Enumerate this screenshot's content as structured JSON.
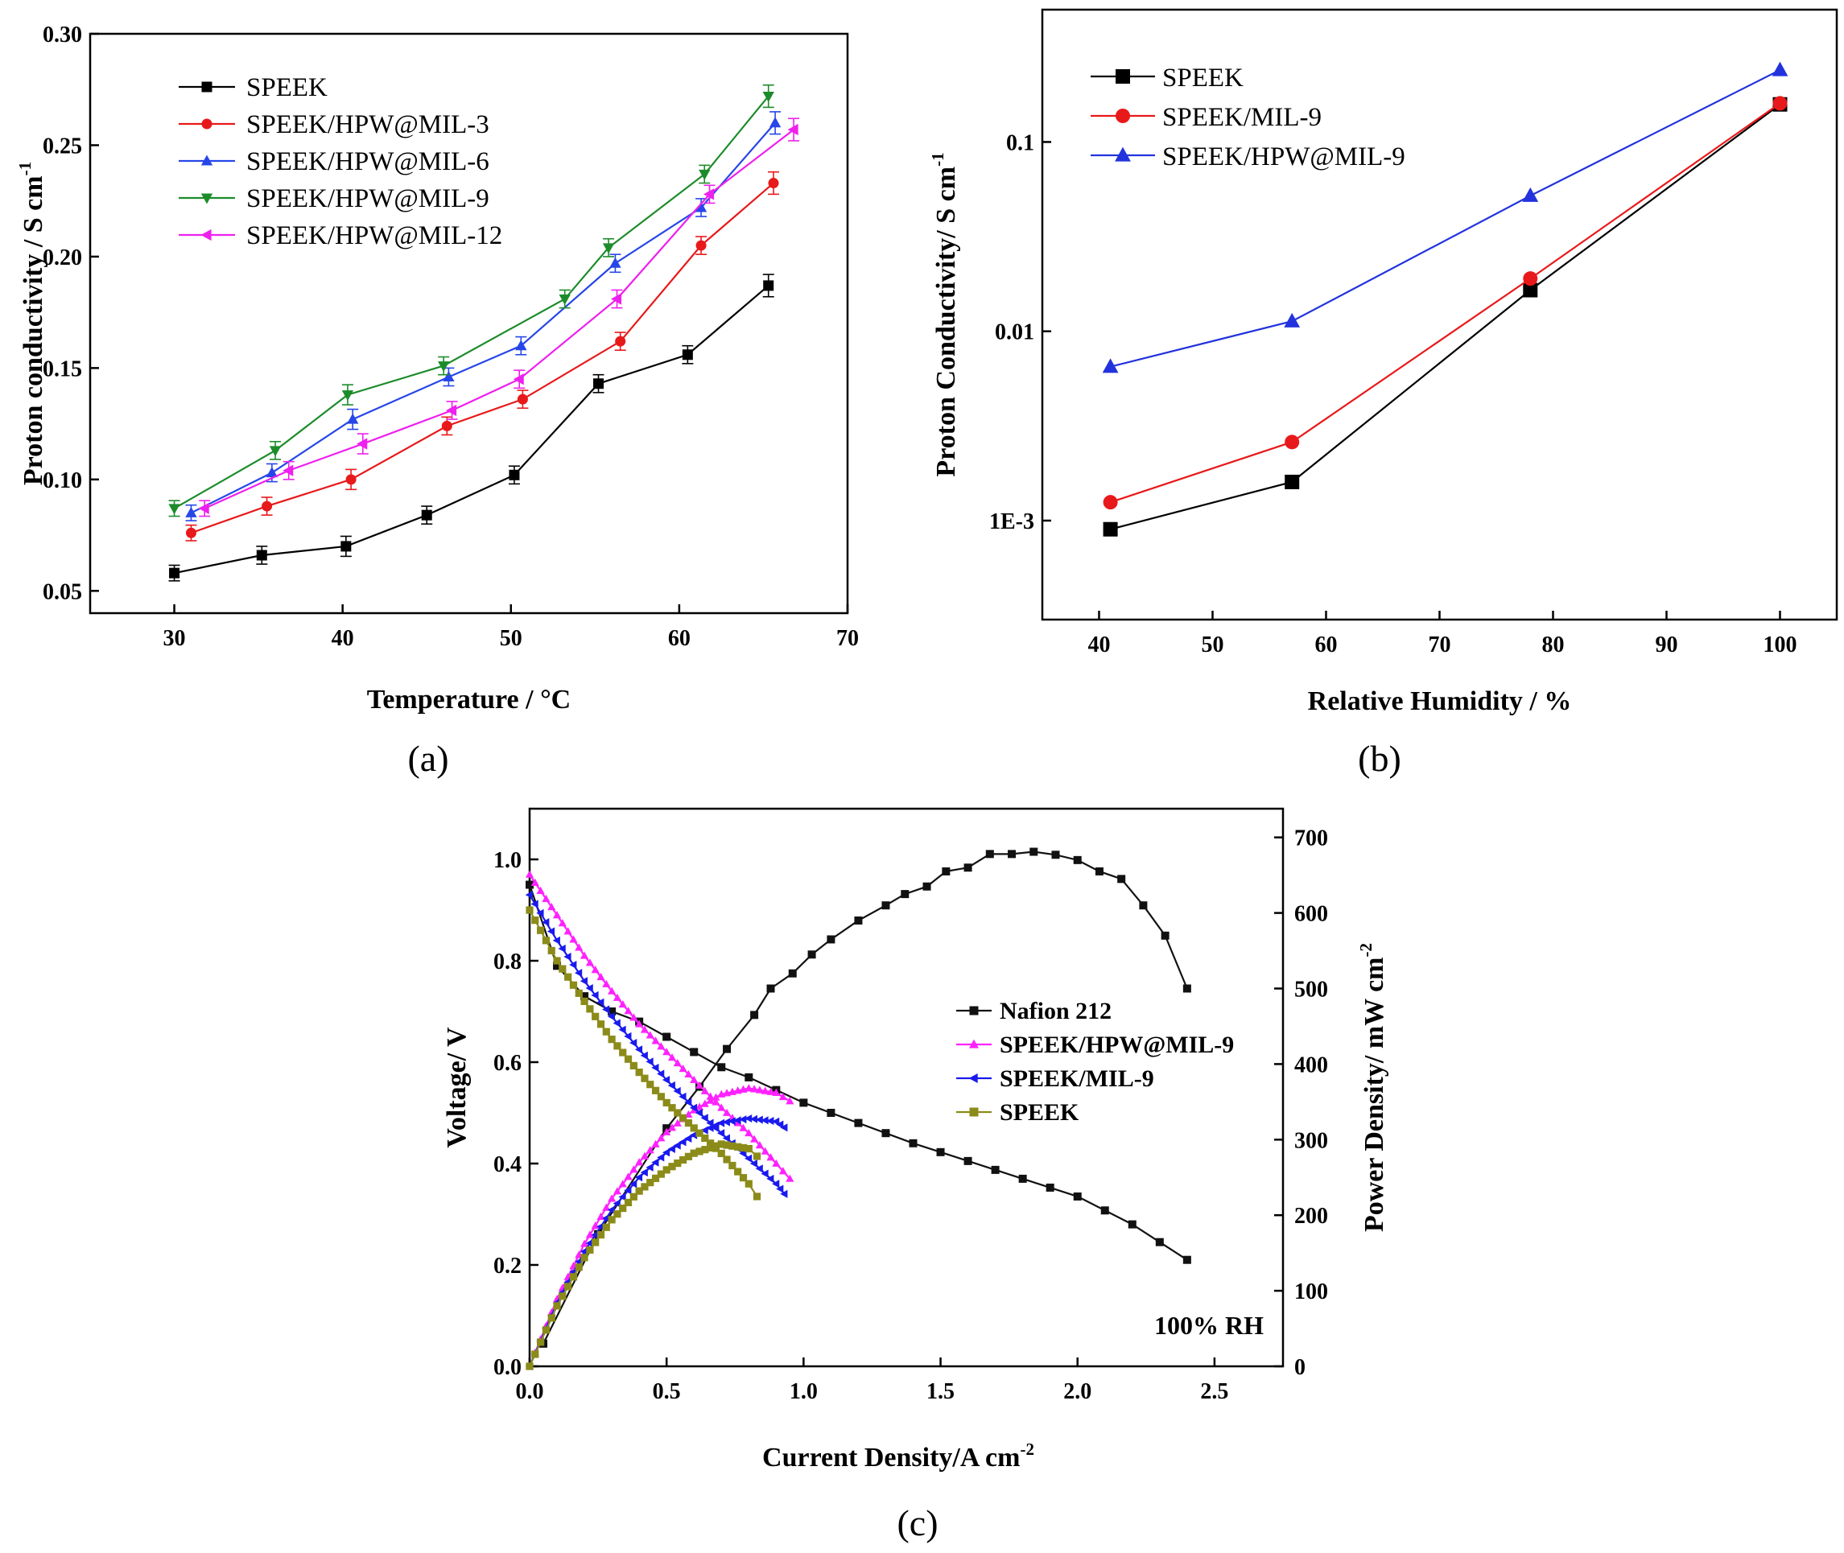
{
  "chart_data": [
    {
      "id": "a",
      "type": "line",
      "panel_label": "a",
      "xlabel": "Temperature / °C",
      "ylabel": "Proton conductivity / S cm",
      "ylabel_sup": "-1",
      "xlim": [
        25,
        70
      ],
      "ylim": [
        0.04,
        0.3
      ],
      "xticks": [
        30,
        40,
        50,
        60,
        70
      ],
      "xtick_labels": [
        "30",
        "40",
        "50",
        "60",
        "70"
      ],
      "yticks": [
        0.05,
        0.1,
        0.15,
        0.2,
        0.25,
        0.3
      ],
      "ytick_labels": [
        "0.05",
        "0.10",
        "0.15",
        "0.20",
        "0.25",
        "0.30"
      ],
      "legend_position": "top-left",
      "series": [
        {
          "name": "SPEEK",
          "color": "#000000",
          "marker": "square",
          "x": [
            30,
            35.2,
            40.2,
            45,
            50.2,
            55.2,
            60.5,
            65.3
          ],
          "y": [
            0.058,
            0.066,
            0.07,
            0.084,
            0.102,
            0.143,
            0.156,
            0.187
          ]
        },
        {
          "name": "SPEEK/HPW@MIL-3",
          "color": "#e8191a",
          "marker": "circle",
          "x": [
            31,
            35.5,
            40.5,
            46.2,
            50.7,
            56.5,
            61.3,
            65.6
          ],
          "y": [
            0.076,
            0.088,
            0.1,
            0.124,
            0.136,
            0.162,
            0.205,
            0.233
          ]
        },
        {
          "name": "SPEEK/HPW@MIL-6",
          "color": "#2646e8",
          "marker": "triangle-up",
          "x": [
            31,
            35.8,
            40.6,
            46.3,
            50.6,
            56.2,
            61.3,
            65.7
          ],
          "y": [
            0.085,
            0.103,
            0.127,
            0.146,
            0.16,
            0.197,
            0.222,
            0.26
          ]
        },
        {
          "name": "SPEEK/HPW@MIL-9",
          "color": "#1c8c2a",
          "marker": "triangle-down",
          "x": [
            30,
            36,
            40.3,
            46,
            53.2,
            55.8,
            61.5,
            65.3
          ],
          "y": [
            0.087,
            0.113,
            0.138,
            0.151,
            0.181,
            0.204,
            0.237,
            0.272
          ]
        },
        {
          "name": "SPEEK/HPW@MIL-12",
          "color": "#ee20ee",
          "marker": "triangle-left",
          "x": [
            31.8,
            36.8,
            41.2,
            46.5,
            50.5,
            56.3,
            61.8,
            66.8
          ],
          "y": [
            0.087,
            0.104,
            0.116,
            0.131,
            0.145,
            0.181,
            0.228,
            0.257
          ]
        }
      ]
    },
    {
      "id": "b",
      "type": "line",
      "panel_label": "b",
      "xlabel": "Relative Humidity / %",
      "ylabel": "Proton Conductivity/ S cm",
      "ylabel_sup": "-1",
      "yscale": "log",
      "xlim": [
        35,
        105
      ],
      "ylim": [
        0.0003,
        0.5
      ],
      "xticks": [
        40,
        50,
        60,
        70,
        80,
        90,
        100
      ],
      "xtick_labels": [
        "40",
        "50",
        "60",
        "70",
        "80",
        "90",
        "100"
      ],
      "yticks": [
        0.001,
        0.01,
        0.1
      ],
      "ytick_labels": [
        "1E-3",
        "0.01",
        "0.1"
      ],
      "legend_position": "top-left",
      "series": [
        {
          "name": "SPEEK",
          "color": "#000000",
          "marker": "square",
          "x": [
            41,
            57,
            78,
            100
          ],
          "y": [
            0.0009,
            0.0016,
            0.0165,
            0.158
          ]
        },
        {
          "name": "SPEEK/MIL-9",
          "color": "#e8191a",
          "marker": "circle",
          "x": [
            41,
            57,
            78,
            100
          ],
          "y": [
            0.00125,
            0.0026,
            0.019,
            0.16
          ]
        },
        {
          "name": "SPEEK/HPW@MIL-9",
          "color": "#2233dd",
          "marker": "triangle-up",
          "x": [
            41,
            57,
            78,
            100
          ],
          "y": [
            0.0065,
            0.0113,
            0.052,
            0.24
          ]
        }
      ]
    },
    {
      "id": "c",
      "type": "line",
      "panel_label": "c",
      "xlabel": "Current Density/A cm",
      "xlabel_sup": "-2",
      "ylabel": "Voltage/ V",
      "y2label": "Power Density/ mW cm",
      "y2label_sup": "-2",
      "xlim": [
        0,
        2.75
      ],
      "ylim": [
        0,
        1.1
      ],
      "y2lim": [
        0,
        738
      ],
      "xticks": [
        0,
        0.5,
        1.0,
        1.5,
        2.0,
        2.5
      ],
      "xtick_labels": [
        "0.0",
        "0.5",
        "1.0",
        "1.5",
        "2.0",
        "2.5"
      ],
      "yticks": [
        0,
        0.2,
        0.4,
        0.6,
        0.8,
        1.0
      ],
      "ytick_labels": [
        "0.0",
        "0.2",
        "0.4",
        "0.6",
        "0.8",
        "1.0"
      ],
      "y2ticks": [
        0,
        100,
        200,
        300,
        400,
        500,
        600,
        700
      ],
      "y2tick_labels": [
        "0",
        "100",
        "200",
        "300",
        "400",
        "500",
        "600",
        "700"
      ],
      "annotation": "100% RH",
      "legend_position": "center-right",
      "series": [
        {
          "name": "Nafion 212",
          "color": "#111111",
          "marker": "square",
          "polarization": {
            "x": [
              0,
              0.1,
              0.2,
              0.3,
              0.4,
              0.5,
              0.6,
              0.7,
              0.8,
              0.9,
              1.0,
              1.2,
              1.4,
              1.6,
              1.8,
              2.0,
              2.2,
              2.4
            ],
            "y": [
              0.95,
              0.79,
              0.73,
              0.7,
              0.68,
              0.65,
              0.62,
              0.59,
              0.57,
              0.545,
              0.52,
              0.48,
              0.44,
              0.405,
              0.37,
              0.335,
              0.28,
              0.21
            ]
          },
          "power": {
            "x": [
              0.05,
              0.25,
              0.5,
              0.62,
              0.72,
              0.82,
              0.88,
              0.96,
              1.03,
              1.1,
              1.2,
              1.3,
              1.37,
              1.45,
              1.52,
              1.6,
              1.68,
              1.76,
              1.84,
              1.92,
              2.0,
              2.08,
              2.16,
              2.24,
              2.32,
              2.4
            ],
            "y": [
              30,
              175,
              315,
              370,
              420,
              465,
              500,
              520,
              545,
              565,
              590,
              610,
              625,
              635,
              655,
              660,
              678,
              678,
              681,
              677,
              670,
              655,
              645,
              610,
              570,
              500
            ]
          }
        },
        {
          "name": "SPEEK/HPW@MIL-9",
          "color": "#ff22ff",
          "marker": "triangle-up",
          "polarization": {
            "x": [
              0,
              0.1,
              0.2,
              0.3,
              0.4,
              0.5,
              0.6,
              0.7,
              0.8,
              0.9,
              0.95
            ],
            "y": [
              0.97,
              0.89,
              0.81,
              0.74,
              0.675,
              0.62,
              0.565,
              0.51,
              0.46,
              0.4,
              0.37
            ]
          },
          "power": {
            "x": [
              0,
              0.1,
              0.2,
              0.3,
              0.4,
              0.5,
              0.6,
              0.7,
              0.8,
              0.9,
              0.95
            ],
            "y": [
              0,
              89,
              162,
              222,
              270,
              310,
              339,
              360,
              368,
              362,
              351
            ]
          }
        },
        {
          "name": "SPEEK/MIL-9",
          "color": "#1a1aee",
          "marker": "triangle-left",
          "polarization": {
            "x": [
              0,
              0.1,
              0.2,
              0.3,
              0.4,
              0.5,
              0.6,
              0.7,
              0.8,
              0.9,
              0.93
            ],
            "y": [
              0.93,
              0.84,
              0.76,
              0.69,
              0.625,
              0.565,
              0.51,
              0.46,
              0.41,
              0.36,
              0.34
            ]
          },
          "power": {
            "x": [
              0,
              0.1,
              0.2,
              0.3,
              0.4,
              0.5,
              0.6,
              0.7,
              0.8,
              0.9,
              0.93
            ],
            "y": [
              0,
              84,
              152,
              207,
              250,
              283,
              306,
              322,
              328,
              324,
              316
            ]
          }
        },
        {
          "name": "SPEEK",
          "color": "#8b8b1a",
          "marker": "square",
          "polarization": {
            "x": [
              0,
              0.1,
              0.2,
              0.3,
              0.4,
              0.5,
              0.6,
              0.7,
              0.8,
              0.83
            ],
            "y": [
              0.9,
              0.8,
              0.72,
              0.645,
              0.58,
              0.52,
              0.47,
              0.42,
              0.36,
              0.335
            ]
          },
          "power": {
            "x": [
              0,
              0.1,
              0.2,
              0.3,
              0.4,
              0.5,
              0.6,
              0.7,
              0.8,
              0.83
            ],
            "y": [
              0,
              80,
              144,
              194,
              232,
              260,
              282,
              294,
              288,
              278
            ]
          }
        }
      ]
    }
  ]
}
